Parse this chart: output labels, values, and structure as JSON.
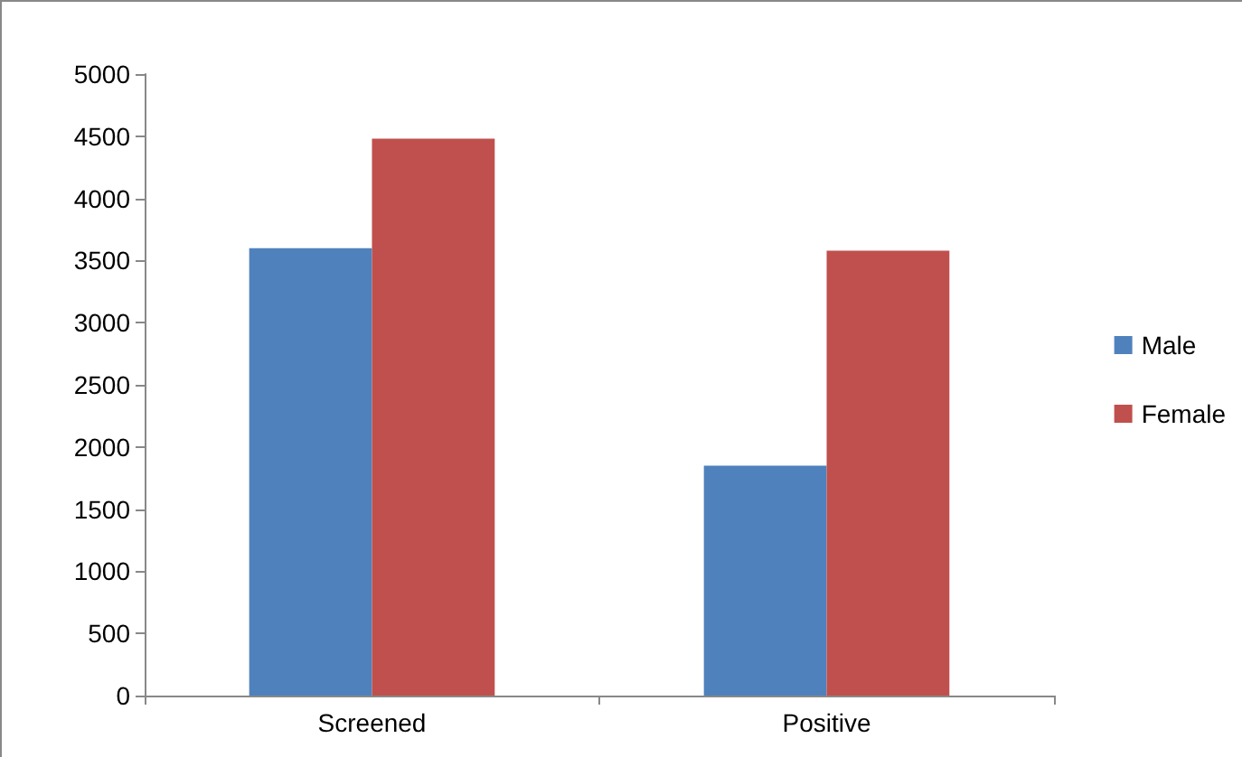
{
  "chart_data": {
    "type": "bar",
    "categories": [
      "Screened",
      "Positive"
    ],
    "series": [
      {
        "name": "Male",
        "color": "#4f81bd",
        "values": [
          3600,
          1850
        ]
      },
      {
        "name": "Female",
        "color": "#c0504d",
        "values": [
          4480,
          3580
        ]
      }
    ],
    "ylim": [
      0,
      5000
    ],
    "yticks": [
      0,
      500,
      1000,
      1500,
      2000,
      2500,
      3000,
      3500,
      4000,
      4500,
      5000
    ],
    "grid": false,
    "legend": "right"
  }
}
